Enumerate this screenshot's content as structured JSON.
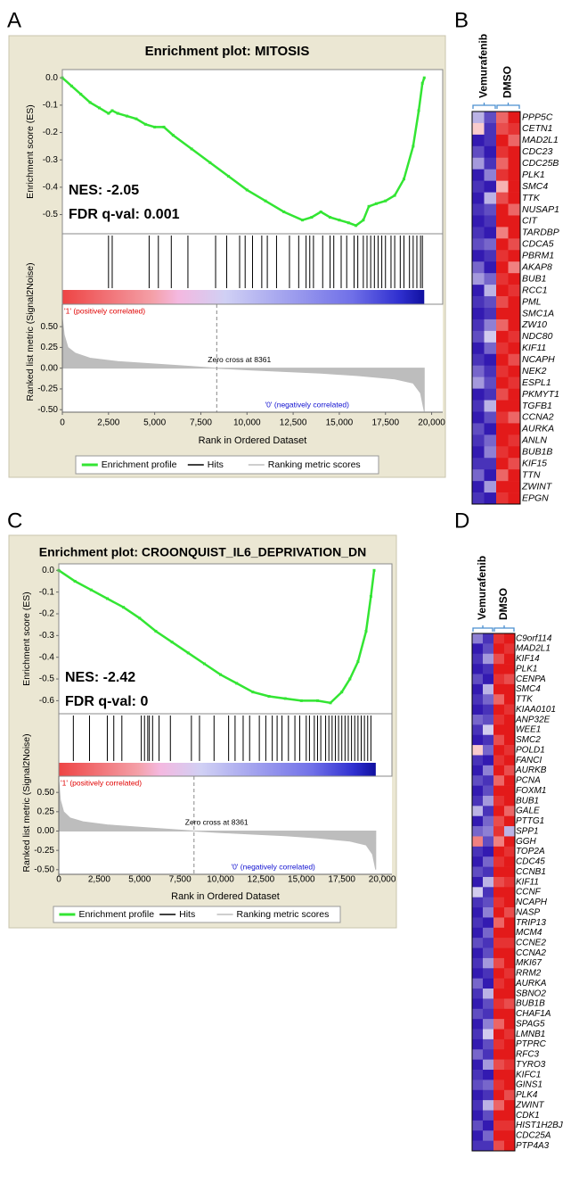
{
  "chart_data": [
    {
      "panel": "A",
      "type": "enrichment",
      "title": "Enrichment plot: MITOSIS",
      "annotations": [
        "NES: -2.05",
        "FDR q-val: 0.001"
      ],
      "xlabel": "Rank in Ordered Dataset",
      "xlim": [
        0,
        20600
      ],
      "xticks": [
        0,
        {
          "value": 2500,
          "label": "2,500"
        },
        {
          "value": 5000,
          "label": "5,000"
        },
        {
          "value": 7500,
          "label": "7,500"
        },
        {
          "value": 10000,
          "label": "10,000"
        },
        {
          "value": 12500,
          "label": "12,500"
        },
        {
          "value": 15000,
          "label": "15,000"
        },
        {
          "value": 17500,
          "label": "17,500"
        },
        {
          "value": 20000,
          "label": "20,000"
        }
      ],
      "es": {
        "ylabel": "Enrichment score (ES)",
        "ylim": [
          -0.57,
          0.03
        ],
        "yticks": [
          {
            "value": 0,
            "label": "0.0"
          },
          -0.1,
          -0.2,
          -0.3,
          -0.4,
          -0.5
        ],
        "x": [
          0,
          500,
          1000,
          1500,
          2000,
          2500,
          2700,
          3000,
          3500,
          4000,
          4500,
          5000,
          5500,
          6000,
          7000,
          8000,
          9000,
          10000,
          11000,
          12000,
          13000,
          13500,
          14000,
          14500,
          15000,
          15500,
          15900,
          16300,
          16600,
          17000,
          17500,
          18000,
          18500,
          19000,
          19300,
          19500,
          19600
        ],
        "values": [
          0,
          -0.03,
          -0.06,
          -0.09,
          -0.11,
          -0.13,
          -0.12,
          -0.13,
          -0.14,
          -0.15,
          -0.17,
          -0.18,
          -0.18,
          -0.21,
          -0.26,
          -0.31,
          -0.36,
          -0.41,
          -0.45,
          -0.49,
          -0.52,
          -0.51,
          -0.49,
          -0.51,
          -0.52,
          -0.53,
          -0.54,
          -0.52,
          -0.47,
          -0.46,
          -0.45,
          -0.43,
          -0.37,
          -0.25,
          -0.12,
          -0.02,
          0
        ]
      },
      "hits": [
        2500,
        2700,
        4700,
        5200,
        5900,
        6800,
        8300,
        8900,
        9600,
        9900,
        10300,
        10800,
        11100,
        11600,
        12300,
        12800,
        13200,
        13400,
        13600,
        14100,
        14500,
        14700,
        15100,
        15400,
        15800,
        16000,
        16300,
        16500,
        16700,
        16900,
        17100,
        17300,
        17500,
        17800,
        18000,
        18300,
        18500,
        18800,
        19000,
        19200,
        19400,
        19500
      ],
      "metric": {
        "ylabel": "Ranked list metric (Signal2Noise)",
        "ylim": [
          -0.53,
          0.77
        ],
        "yticks": [
          {
            "value": 0.5,
            "label": "0.50"
          },
          {
            "value": 0.25,
            "label": "0.25"
          },
          {
            "value": 0,
            "label": "0.00"
          },
          {
            "value": -0.25,
            "label": "-0.25"
          },
          {
            "value": -0.5,
            "label": "-0.50"
          }
        ],
        "x": [
          0,
          100,
          300,
          700,
          1500,
          3000,
          5000,
          7000,
          8361,
          10000,
          12000,
          14000,
          16000,
          18000,
          19000,
          19400,
          19600
        ],
        "values": [
          0.6,
          0.4,
          0.25,
          0.18,
          0.12,
          0.08,
          0.05,
          0.02,
          0,
          -0.02,
          -0.04,
          -0.06,
          -0.09,
          -0.13,
          -0.18,
          -0.3,
          -0.52
        ],
        "zero_cross": {
          "value": 8361,
          "label": "Zero cross at 8361"
        }
      },
      "pos_label": "'1' (positively correlated)",
      "neg_label": "'0' (negatively correlated)",
      "legend": [
        {
          "name": "Enrichment profile",
          "color": "#33e533"
        },
        {
          "name": "Hits",
          "color": "#000000"
        },
        {
          "name": "Ranking metric scores",
          "color": "#bdbdbd"
        }
      ]
    },
    {
      "panel": "B",
      "type": "heatmap",
      "groups": [
        "Vemurafenib",
        "DMSO"
      ],
      "zlim": [
        -1,
        1
      ],
      "colors": [
        "#1c00a8",
        "#ffffff",
        "#e00000"
      ],
      "rows": [
        "PPP5C",
        "CETN1",
        "MAD2L1",
        "CDC23",
        "CDC25B",
        "PLK1",
        "SMC4",
        "TTK",
        "NUSAP1",
        "CIT",
        "TARDBP",
        "CDCA5",
        "PBRM1",
        "AKAP8",
        "BUB1",
        "RCC1",
        "PML",
        "SMC1A",
        "ZW10",
        "NDC80",
        "KIF11",
        "NCAPH",
        "NEK2",
        "ESPL1",
        "PKMYT1",
        "TGFB1",
        "CCNA2",
        "AURKA",
        "ANLN",
        "BUB1B",
        "KIF15",
        "TTN",
        "ZWINT",
        "EPGN"
      ],
      "values": [
        [
          -0.3,
          -0.7,
          0.6,
          0.9
        ],
        [
          0.2,
          -0.8,
          0.7,
          0.8
        ],
        [
          -0.9,
          -0.8,
          0.9,
          0.6
        ],
        [
          -0.7,
          -0.9,
          0.8,
          0.9
        ],
        [
          -0.4,
          -0.8,
          0.6,
          0.9
        ],
        [
          -0.9,
          -0.5,
          0.8,
          0.9
        ],
        [
          -0.8,
          -0.9,
          0.3,
          0.9
        ],
        [
          -0.9,
          -0.3,
          0.7,
          0.9
        ],
        [
          -0.8,
          -0.7,
          0.9,
          0.6
        ],
        [
          -0.9,
          -0.8,
          0.9,
          0.9
        ],
        [
          -0.8,
          -0.9,
          0.5,
          0.9
        ],
        [
          -0.7,
          -0.6,
          0.9,
          0.7
        ],
        [
          -0.9,
          -0.8,
          0.8,
          0.9
        ],
        [
          -0.6,
          -0.9,
          0.9,
          0.5
        ],
        [
          -0.4,
          -0.6,
          0.8,
          0.9
        ],
        [
          -0.9,
          -0.3,
          0.9,
          0.8
        ],
        [
          -0.8,
          -0.7,
          0.7,
          0.9
        ],
        [
          -0.9,
          -0.8,
          0.9,
          0.9
        ],
        [
          -0.8,
          -0.5,
          0.6,
          0.9
        ],
        [
          -0.7,
          -0.2,
          0.9,
          0.8
        ],
        [
          -0.9,
          -0.6,
          0.8,
          0.9
        ],
        [
          -0.8,
          -0.9,
          0.9,
          0.7
        ],
        [
          -0.6,
          -0.8,
          0.8,
          0.9
        ],
        [
          -0.4,
          -0.7,
          0.9,
          0.8
        ],
        [
          -0.9,
          -0.8,
          0.7,
          0.9
        ],
        [
          -0.8,
          -0.3,
          0.9,
          0.9
        ],
        [
          -0.9,
          -0.7,
          0.8,
          0.6
        ],
        [
          -0.7,
          -0.9,
          0.9,
          0.9
        ],
        [
          -0.8,
          -0.6,
          0.9,
          0.8
        ],
        [
          -0.9,
          -0.5,
          0.8,
          0.9
        ],
        [
          -0.8,
          -0.8,
          0.9,
          0.7
        ],
        [
          -0.6,
          -0.9,
          0.6,
          0.9
        ],
        [
          -0.9,
          -0.4,
          0.9,
          0.9
        ],
        [
          -0.8,
          -0.9,
          0.8,
          0.9
        ]
      ]
    },
    {
      "panel": "C",
      "type": "enrichment",
      "title": "Enrichment plot: CROONQUIST_IL6_DEPRIVATION_DN",
      "annotations": [
        "NES: -2.42",
        "FDR q-val: 0"
      ],
      "xlabel": "Rank in Ordered Dataset",
      "xlim": [
        0,
        20600
      ],
      "xticks": [
        0,
        {
          "value": 2500,
          "label": "2,500"
        },
        {
          "value": 5000,
          "label": "5,000"
        },
        {
          "value": 7500,
          "label": "7,500"
        },
        {
          "value": 10000,
          "label": "10,000"
        },
        {
          "value": 12500,
          "label": "12,500"
        },
        {
          "value": 15000,
          "label": "15,000"
        },
        {
          "value": 17500,
          "label": "17,500"
        },
        {
          "value": 20000,
          "label": "20,000"
        }
      ],
      "es": {
        "ylabel": "Enrichment score (ES)",
        "ylim": [
          -0.66,
          0.03
        ],
        "yticks": [
          {
            "value": 0,
            "label": "0.0"
          },
          -0.1,
          -0.2,
          -0.3,
          -0.4,
          -0.5,
          -0.6
        ],
        "x": [
          0,
          1000,
          2000,
          3000,
          4000,
          5000,
          6000,
          7000,
          8000,
          9000,
          10000,
          11000,
          12000,
          13000,
          14000,
          15000,
          16000,
          16800,
          17500,
          18000,
          18500,
          19000,
          19300,
          19500
        ],
        "values": [
          0,
          -0.05,
          -0.09,
          -0.13,
          -0.17,
          -0.22,
          -0.28,
          -0.33,
          -0.38,
          -0.43,
          -0.48,
          -0.52,
          -0.56,
          -0.58,
          -0.59,
          -0.6,
          -0.6,
          -0.61,
          -0.56,
          -0.5,
          -0.42,
          -0.28,
          -0.12,
          0
        ]
      },
      "hits": [
        900,
        1900,
        3000,
        3400,
        3900,
        5100,
        5300,
        5500,
        5600,
        5800,
        6200,
        6900,
        8200,
        8700,
        9600,
        10500,
        10900,
        11400,
        11800,
        12400,
        12800,
        13200,
        13500,
        13800,
        14200,
        14600,
        14900,
        15300,
        15500,
        15800,
        16000,
        16200,
        16500,
        16700,
        16900,
        17100,
        17300,
        17500,
        17700,
        17900,
        18100,
        18300,
        18500,
        18700,
        18900,
        19100,
        19300
      ],
      "metric": {
        "ylabel": "Ranked list metric (Signal2Noise)",
        "ylim": [
          -0.56,
          0.71
        ],
        "yticks": [
          {
            "value": 0.5,
            "label": "0.50"
          },
          {
            "value": 0.25,
            "label": "0.25"
          },
          {
            "value": 0,
            "label": "0.00"
          },
          {
            "value": -0.25,
            "label": "-0.25"
          },
          {
            "value": -0.5,
            "label": "-0.50"
          }
        ],
        "x": [
          0,
          100,
          300,
          700,
          1500,
          3000,
          5000,
          7000,
          8361,
          10000,
          12000,
          14000,
          16000,
          18000,
          19000,
          19400,
          19600
        ],
        "values": [
          0.65,
          0.4,
          0.25,
          0.17,
          0.12,
          0.08,
          0.05,
          0.02,
          0,
          -0.02,
          -0.04,
          -0.06,
          -0.09,
          -0.13,
          -0.18,
          -0.3,
          -0.5
        ],
        "zero_cross": {
          "value": 8361,
          "label": "Zero cross at 8361"
        }
      },
      "pos_label": "'1' (positively correlated)",
      "neg_label": "'0' (negatively correlated)",
      "legend": [
        {
          "name": "Enrichment profile",
          "color": "#33e533"
        },
        {
          "name": "Hits",
          "color": "#000000"
        },
        {
          "name": "Ranking metric scores",
          "color": "#bdbdbd"
        }
      ]
    },
    {
      "panel": "D",
      "type": "heatmap",
      "groups": [
        "Vemurafenib",
        "DMSO"
      ],
      "zlim": [
        -1,
        1
      ],
      "colors": [
        "#1c00a8",
        "#ffffff",
        "#e00000"
      ],
      "rows": [
        "C9orf114",
        "MAD2L1",
        "KIF14",
        "PLK1",
        "CENPA",
        "SMC4",
        "TTK",
        "KIAA0101",
        "ANP32E",
        "WEE1",
        "SMC2",
        "POLD1",
        "FANCI",
        "AURKB",
        "PCNA",
        "FOXM1",
        "BUB1",
        "GALE",
        "PTTG1",
        "SPP1",
        "GGH",
        "TOP2A",
        "CDC45",
        "CCNB1",
        "KIF11",
        "CCNF",
        "NCAPH",
        "NASP",
        "TRIP13",
        "MCM4",
        "CCNE2",
        "CCNA2",
        "MKI67",
        "RRM2",
        "AURKA",
        "SBNO2",
        "BUB1B",
        "CHAF1A",
        "SPAG5",
        "LMNB1",
        "PTPRC",
        "RFC3",
        "TYRO3",
        "KIFC1",
        "GINS1",
        "PLK4",
        "ZWINT",
        "CDK1",
        "HIST1H2BJ",
        "CDC25A",
        "PTP4A3"
      ],
      "values": [
        [
          -0.5,
          -0.8,
          0.8,
          0.9
        ],
        [
          -0.9,
          -0.7,
          0.9,
          0.8
        ],
        [
          -0.8,
          -0.4,
          0.7,
          0.9
        ],
        [
          -0.9,
          -0.8,
          0.9,
          0.9
        ],
        [
          -0.7,
          -0.9,
          0.8,
          0.7
        ],
        [
          -0.9,
          -0.3,
          0.9,
          0.9
        ],
        [
          -0.8,
          -0.6,
          0.6,
          0.9
        ],
        [
          -0.9,
          -0.8,
          0.9,
          0.8
        ],
        [
          -0.6,
          -0.7,
          0.8,
          0.9
        ],
        [
          -0.8,
          -0.2,
          0.9,
          0.9
        ],
        [
          -0.9,
          -0.8,
          0.7,
          0.9
        ],
        [
          0.2,
          -0.6,
          0.9,
          0.8
        ],
        [
          -0.8,
          -0.9,
          0.8,
          0.9
        ],
        [
          -0.9,
          -0.5,
          0.9,
          0.7
        ],
        [
          -0.7,
          -0.8,
          0.6,
          0.9
        ],
        [
          -0.9,
          -0.7,
          0.9,
          0.9
        ],
        [
          -0.8,
          -0.4,
          0.8,
          0.9
        ],
        [
          -0.3,
          -0.8,
          0.9,
          0.6
        ],
        [
          -0.9,
          -0.6,
          0.7,
          0.9
        ],
        [
          -0.6,
          -0.5,
          0.8,
          -0.3
        ],
        [
          0.5,
          -0.7,
          0.5,
          0.9
        ],
        [
          -0.8,
          -0.9,
          0.9,
          0.8
        ],
        [
          -0.9,
          -0.6,
          0.8,
          0.9
        ],
        [
          -0.7,
          -0.8,
          0.9,
          0.9
        ],
        [
          -0.9,
          -0.3,
          0.7,
          0.8
        ],
        [
          -0.2,
          -0.8,
          0.9,
          0.9
        ],
        [
          -0.8,
          -0.7,
          0.8,
          0.9
        ],
        [
          -0.9,
          -0.5,
          0.9,
          0.7
        ],
        [
          -0.8,
          -0.9,
          0.6,
          0.9
        ],
        [
          -0.9,
          -0.6,
          0.9,
          0.9
        ],
        [
          -0.7,
          -0.8,
          0.8,
          0.8
        ],
        [
          -0.9,
          -0.7,
          0.9,
          0.9
        ],
        [
          -0.8,
          -0.4,
          0.7,
          0.9
        ],
        [
          -0.9,
          -0.8,
          0.9,
          0.8
        ],
        [
          -0.6,
          -0.9,
          0.8,
          0.9
        ],
        [
          -0.8,
          -0.3,
          0.9,
          0.9
        ],
        [
          -0.9,
          -0.7,
          0.8,
          0.7
        ],
        [
          -0.7,
          -0.8,
          0.9,
          0.9
        ],
        [
          -0.9,
          -0.5,
          0.6,
          0.9
        ],
        [
          -0.8,
          -0.2,
          0.9,
          0.8
        ],
        [
          -0.9,
          -0.7,
          0.8,
          0.9
        ],
        [
          -0.6,
          -0.8,
          0.9,
          0.9
        ],
        [
          -0.9,
          -0.4,
          0.7,
          0.8
        ],
        [
          -0.8,
          -0.9,
          0.9,
          0.9
        ],
        [
          -0.7,
          -0.6,
          0.8,
          0.9
        ],
        [
          -0.9,
          -0.8,
          0.9,
          0.7
        ],
        [
          -0.8,
          -0.3,
          0.6,
          0.9
        ],
        [
          -0.9,
          -0.7,
          0.9,
          0.9
        ],
        [
          -0.7,
          -0.9,
          0.8,
          0.8
        ],
        [
          -0.9,
          -0.6,
          0.9,
          0.9
        ],
        [
          -0.8,
          -0.8,
          0.7,
          0.9
        ]
      ]
    }
  ]
}
